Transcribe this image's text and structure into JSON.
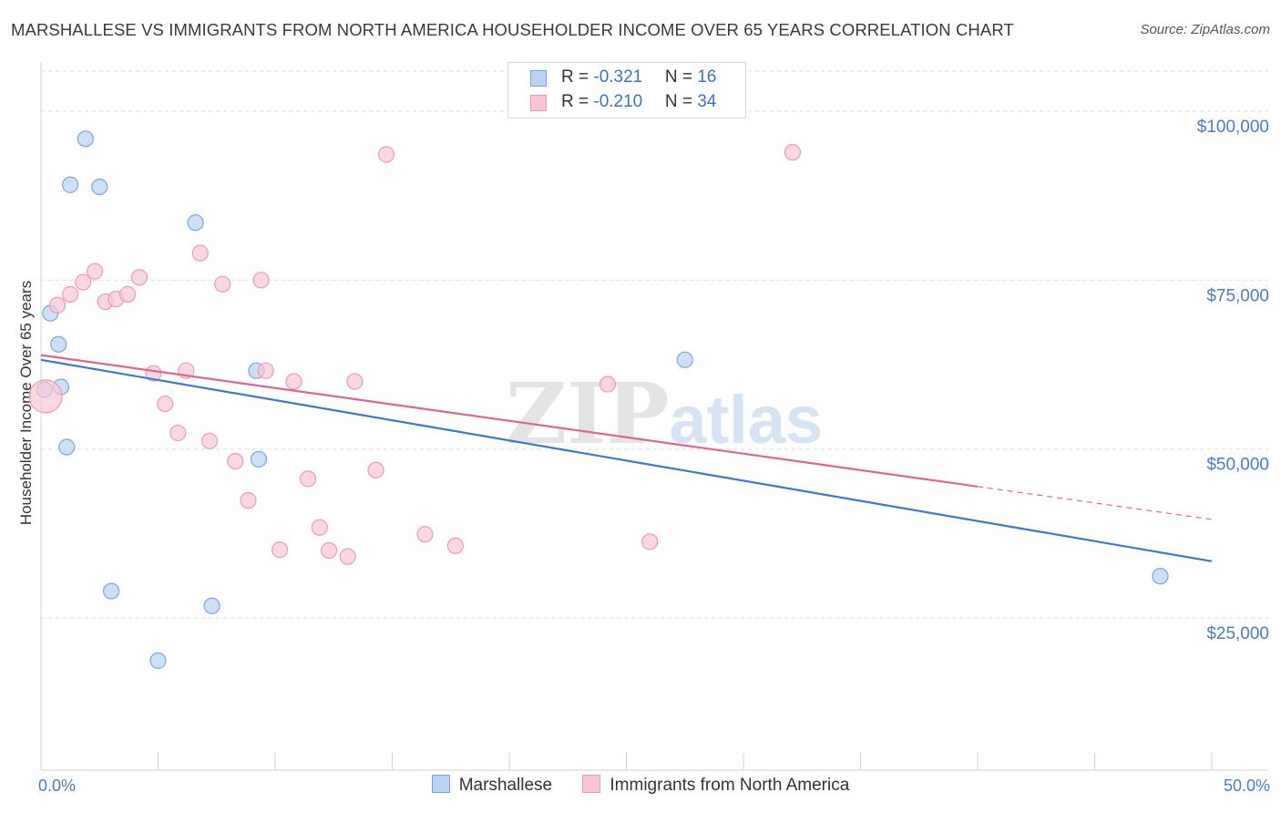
{
  "title": "MARSHALLESE VS IMMIGRANTS FROM NORTH AMERICA HOUSEHOLDER INCOME OVER 65 YEARS CORRELATION CHART",
  "source": "Source: ZipAtlas.com",
  "watermark": {
    "zip": "ZIP",
    "atlas": "atlas"
  },
  "colors": {
    "blue_fill": "#b9d3f2",
    "blue_stroke": "#7aa6de",
    "blue_line": "#3b78d0",
    "pink_fill": "#f9c6d4",
    "pink_stroke": "#ec9ab3",
    "pink_line": "#e0648f",
    "grid": "#d9dde4",
    "tick_label": "#4a7cc7"
  },
  "stats": [
    {
      "r_label": "R = ",
      "r_value": "-0.321",
      "n_label": "N = ",
      "n_value": "16"
    },
    {
      "r_label": "R = ",
      "r_value": "-0.210",
      "n_label": "N = ",
      "n_value": "34"
    }
  ],
  "legend": [
    {
      "name": "Marshallese"
    },
    {
      "name": "Immigrants from North America"
    }
  ],
  "chart_data": {
    "type": "scatter",
    "title": "MARSHALLESE VS IMMIGRANTS FROM NORTH AMERICA HOUSEHOLDER INCOME OVER 65 YEARS CORRELATION CHART",
    "xlabel": "",
    "ylabel": "Householder Income Over 65 years",
    "xlim": [
      0,
      50
    ],
    "ylim": [
      2500,
      107000
    ],
    "x_tick_labels": [
      "0.0%",
      "50.0%"
    ],
    "y_ticks": [
      25000,
      50000,
      75000,
      100000
    ],
    "y_tick_labels": [
      "$25,000",
      "$50,000",
      "$75,000",
      "$100,000"
    ],
    "grid": true,
    "legend_position": "bottom-center",
    "series": [
      {
        "name": "Marshallese",
        "points": [
          {
            "x": 0.15,
            "y": 58800
          },
          {
            "x": 0.4,
            "y": 70100
          },
          {
            "x": 0.75,
            "y": 65500
          },
          {
            "x": 0.85,
            "y": 59200
          },
          {
            "x": 1.1,
            "y": 50300
          },
          {
            "x": 1.25,
            "y": 89100
          },
          {
            "x": 1.9,
            "y": 95900
          },
          {
            "x": 2.5,
            "y": 88800
          },
          {
            "x": 3.0,
            "y": 29000
          },
          {
            "x": 5.0,
            "y": 18700
          },
          {
            "x": 6.6,
            "y": 83500
          },
          {
            "x": 7.3,
            "y": 26800
          },
          {
            "x": 9.2,
            "y": 61600
          },
          {
            "x": 9.3,
            "y": 48500
          },
          {
            "x": 27.5,
            "y": 63200
          },
          {
            "x": 47.8,
            "y": 31200
          }
        ],
        "trend": {
          "x0": 0,
          "y0": 63200,
          "x1": 50,
          "y1": 33400,
          "dashed_from": null
        }
      },
      {
        "name": "Immigrants from North America",
        "points": [
          {
            "x": 0.2,
            "y": 57800,
            "size": "large"
          },
          {
            "x": 0.7,
            "y": 71300
          },
          {
            "x": 1.25,
            "y": 72900
          },
          {
            "x": 1.8,
            "y": 74700
          },
          {
            "x": 2.3,
            "y": 76300
          },
          {
            "x": 2.75,
            "y": 71800
          },
          {
            "x": 3.2,
            "y": 72200
          },
          {
            "x": 3.7,
            "y": 72900
          },
          {
            "x": 4.2,
            "y": 75400
          },
          {
            "x": 4.8,
            "y": 61200
          },
          {
            "x": 5.3,
            "y": 56700
          },
          {
            "x": 5.85,
            "y": 52400
          },
          {
            "x": 6.2,
            "y": 61600
          },
          {
            "x": 6.8,
            "y": 79000
          },
          {
            "x": 7.2,
            "y": 51200
          },
          {
            "x": 7.75,
            "y": 74400
          },
          {
            "x": 8.3,
            "y": 48200
          },
          {
            "x": 8.85,
            "y": 42400
          },
          {
            "x": 9.4,
            "y": 75000
          },
          {
            "x": 9.6,
            "y": 61600
          },
          {
            "x": 10.2,
            "y": 35100
          },
          {
            "x": 10.8,
            "y": 60000
          },
          {
            "x": 11.4,
            "y": 45600
          },
          {
            "x": 11.9,
            "y": 38400
          },
          {
            "x": 12.3,
            "y": 35000
          },
          {
            "x": 13.1,
            "y": 34100
          },
          {
            "x": 13.4,
            "y": 60000
          },
          {
            "x": 14.3,
            "y": 46900
          },
          {
            "x": 14.75,
            "y": 93600
          },
          {
            "x": 16.4,
            "y": 37400
          },
          {
            "x": 17.7,
            "y": 35700
          },
          {
            "x": 24.2,
            "y": 59600
          },
          {
            "x": 26.0,
            "y": 36300
          },
          {
            "x": 32.1,
            "y": 93900
          }
        ],
        "trend": {
          "x0": 0,
          "y0": 63900,
          "x1": 50,
          "y1": 39600,
          "dashed_from": 40
        }
      }
    ]
  }
}
